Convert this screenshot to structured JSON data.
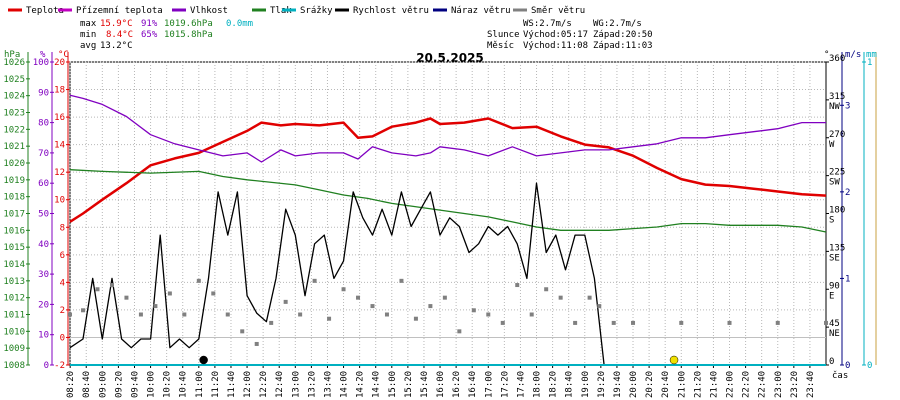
{
  "chart_data": {
    "type": "line",
    "title": "20.5.2025",
    "xlabel": "čas",
    "legend": [
      {
        "label": "Teplota",
        "color": "#e00000"
      },
      {
        "label": "Přízemní teplota",
        "color": "#c000c0"
      },
      {
        "label": "Vlhkost",
        "color": "#8000c0"
      },
      {
        "label": "Tlak",
        "color": "#208020"
      },
      {
        "label": "Srážky",
        "color": "#00b0c0"
      },
      {
        "label": "Rychlost větru",
        "color": "#000000"
      },
      {
        "label": "Náraz větru",
        "color": "#000080"
      },
      {
        "label": "Směr větru",
        "color": "#808080"
      }
    ],
    "stats": {
      "max_label": "max",
      "max_temp": "15.9°C",
      "max_hum": "91%",
      "max_press": "1019.6hPa",
      "rain": "0.0mm",
      "min_label": "min",
      "min_temp": "8.4°C",
      "min_hum": "65%",
      "min_press": "1015.8hPa",
      "avg_label": "avg",
      "avg_temp": "13.2°C"
    },
    "info": {
      "ws": "WS:2.7m/s",
      "wg": "WG:2.7m/s",
      "sun_label": "Slunce",
      "sunrise": "Východ:05:17",
      "sunset": "Západ:20:50",
      "moon_label": "Měsíc",
      "moonrise": "Východ:11:08",
      "moonset": "Západ:11:03"
    },
    "axes": {
      "hpa": {
        "label": "hPa",
        "min": 1008,
        "max": 1026,
        "ticks": [
          "1008",
          "1009",
          "1010",
          "1011",
          "1012",
          "1013",
          "1014",
          "1015",
          "1016",
          "1017",
          "1018",
          "1019",
          "1020",
          "1021",
          "1022",
          "1023",
          "1024",
          "1025",
          "1026"
        ],
        "color": "#208020"
      },
      "hum": {
        "label": "%",
        "min": 0,
        "max": 100,
        "ticks": [
          "0",
          "10",
          "20",
          "30",
          "40",
          "50",
          "60",
          "70",
          "80",
          "90",
          "100"
        ],
        "color": "#8000c0"
      },
      "temp": {
        "label": "°C",
        "min": -2,
        "max": 20,
        "ticks": [
          "-2",
          "0",
          "2",
          "4",
          "6",
          "8",
          "10",
          "12",
          "14",
          "16",
          "18",
          "20"
        ],
        "color": "#e00000"
      },
      "dir": {
        "label": "°",
        "min": 0,
        "max": 360,
        "ticks": [
          "0",
          "45",
          "90",
          "135",
          "180",
          "225",
          "270",
          "315",
          "360"
        ],
        "names": [
          "",
          "NE",
          "E",
          "SE",
          "S",
          "SW",
          "W",
          "NW",
          ""
        ]
      },
      "wind": {
        "label": "m/s",
        "min": 0,
        "max": 3.5,
        "ticks": [
          "0",
          "1",
          "2",
          "3"
        ]
      },
      "rain": {
        "label": "mm",
        "min": 0,
        "max": 1,
        "ticks": [
          "0",
          "1"
        ]
      }
    },
    "x_range": [
      8.33,
      24.0
    ],
    "x_ticks": [
      "08:20",
      "08:40",
      "09:00",
      "09:20",
      "09:40",
      "10:00",
      "10:20",
      "10:40",
      "11:00",
      "11:20",
      "11:40",
      "12:00",
      "12:20",
      "12:40",
      "13:00",
      "13:20",
      "13:40",
      "14:00",
      "14:20",
      "14:40",
      "15:00",
      "15:20",
      "15:40",
      "16:00",
      "16:20",
      "16:40",
      "17:00",
      "17:20",
      "17:40",
      "18:00",
      "18:20",
      "18:40",
      "19:00",
      "19:20",
      "19:40",
      "20:00",
      "20:20",
      "20:40",
      "21:00",
      "21:20",
      "21:40",
      "22:00",
      "22:20",
      "22:40",
      "23:00",
      "23:20",
      "23:40"
    ],
    "series": [
      {
        "name": "Teplota",
        "axis": "temp",
        "color": "#e00000",
        "x": [
          8.33,
          8.6,
          9.0,
          9.5,
          10.0,
          10.5,
          11.0,
          11.5,
          12.0,
          12.3,
          12.7,
          13.0,
          13.5,
          14.0,
          14.3,
          14.6,
          15.0,
          15.5,
          15.8,
          16.0,
          16.5,
          17.0,
          17.5,
          18.0,
          18.5,
          19.0,
          19.5,
          20.0,
          20.5,
          21.0,
          21.5,
          22.0,
          22.5,
          23.0,
          23.5,
          24.0
        ],
        "values": [
          8.4,
          9.0,
          10.0,
          11.2,
          12.5,
          13.0,
          13.4,
          14.2,
          15.0,
          15.6,
          15.4,
          15.5,
          15.4,
          15.6,
          14.5,
          14.6,
          15.3,
          15.6,
          15.9,
          15.5,
          15.6,
          15.9,
          15.2,
          15.3,
          14.6,
          14.0,
          13.8,
          13.2,
          12.3,
          11.5,
          11.1,
          11.0,
          10.8,
          10.6,
          10.4,
          10.3
        ]
      },
      {
        "name": "Vlhkost",
        "axis": "hum",
        "color": "#8000c0",
        "x": [
          8.33,
          8.6,
          9.0,
          9.5,
          10.0,
          10.5,
          11.0,
          11.5,
          12.0,
          12.3,
          12.7,
          13.0,
          13.5,
          14.0,
          14.3,
          14.6,
          15.0,
          15.5,
          15.8,
          16.0,
          16.5,
          17.0,
          17.5,
          18.0,
          18.5,
          19.0,
          19.5,
          20.0,
          20.5,
          21.0,
          21.5,
          22.0,
          22.5,
          23.0,
          23.5,
          24.0
        ],
        "values": [
          89,
          88,
          86,
          82,
          76,
          73,
          71,
          69,
          70,
          67,
          71,
          69,
          70,
          70,
          68,
          72,
          70,
          69,
          70,
          72,
          71,
          69,
          72,
          69,
          70,
          71,
          71,
          72,
          73,
          75,
          75,
          76,
          77,
          78,
          80,
          80
        ]
      },
      {
        "name": "Tlak",
        "axis": "hpa",
        "color": "#208020",
        "x": [
          8.33,
          9.0,
          10.0,
          11.0,
          11.5,
          12.0,
          13.0,
          13.5,
          14.0,
          14.5,
          15.0,
          16.0,
          16.5,
          17.0,
          17.5,
          18.0,
          18.5,
          19.0,
          19.5,
          20.0,
          20.5,
          21.0,
          21.5,
          22.0,
          22.5,
          23.0,
          23.5,
          24.0
        ],
        "values": [
          1019.6,
          1019.5,
          1019.4,
          1019.5,
          1019.2,
          1019.0,
          1018.7,
          1018.4,
          1018.1,
          1017.9,
          1017.6,
          1017.2,
          1017.0,
          1016.8,
          1016.5,
          1016.2,
          1016.0,
          1016.0,
          1016.0,
          1016.1,
          1016.2,
          1016.4,
          1016.4,
          1016.3,
          1016.3,
          1016.3,
          1016.2,
          1015.9
        ]
      },
      {
        "name": "Rychlost větru",
        "axis": "wind",
        "color": "#000000",
        "x": [
          8.33,
          8.6,
          8.8,
          9.0,
          9.2,
          9.4,
          9.6,
          9.8,
          10.0,
          10.2,
          10.4,
          10.6,
          10.8,
          11.0,
          11.2,
          11.4,
          11.6,
          11.8,
          12.0,
          12.2,
          12.4,
          12.6,
          12.8,
          13.0,
          13.2,
          13.4,
          13.6,
          13.8,
          14.0,
          14.2,
          14.4,
          14.6,
          14.8,
          15.0,
          15.2,
          15.4,
          15.6,
          15.8,
          16.0,
          16.2,
          16.4,
          16.6,
          16.8,
          17.0,
          17.2,
          17.4,
          17.6,
          17.8,
          18.0,
          18.2,
          18.4,
          18.6,
          18.8,
          19.0,
          19.2,
          19.4,
          19.6,
          20.0,
          21.0,
          22.0,
          23.0,
          24.0
        ],
        "values": [
          0.2,
          0.3,
          1.0,
          0.3,
          1.0,
          0.3,
          0.2,
          0.3,
          0.3,
          1.5,
          0.2,
          0.3,
          0.2,
          0.3,
          1.0,
          2.0,
          1.5,
          2.0,
          0.8,
          0.6,
          0.5,
          1.0,
          1.8,
          1.5,
          0.8,
          1.4,
          1.5,
          1.0,
          1.2,
          2.0,
          1.7,
          1.5,
          1.8,
          1.5,
          2.0,
          1.6,
          1.8,
          2.0,
          1.5,
          1.7,
          1.6,
          1.3,
          1.4,
          1.6,
          1.5,
          1.6,
          1.4,
          1.0,
          2.1,
          1.3,
          1.5,
          1.1,
          1.5,
          1.5,
          1.0,
          0.0,
          0.0,
          0.0,
          0.0,
          0.0,
          0.0,
          0.0
        ]
      },
      {
        "name": "Směr větru",
        "axis": "dir",
        "color": "#808080",
        "x": [
          8.33,
          8.6,
          8.9,
          9.2,
          9.5,
          9.8,
          10.1,
          10.4,
          10.7,
          11.0,
          11.3,
          11.6,
          11.9,
          12.2,
          12.5,
          12.8,
          13.1,
          13.4,
          13.7,
          14.0,
          14.3,
          14.6,
          14.9,
          15.2,
          15.5,
          15.8,
          16.1,
          16.4,
          16.7,
          17.0,
          17.3,
          17.6,
          17.9,
          18.2,
          18.5,
          18.8,
          19.1,
          19.3,
          19.6,
          20.0,
          21.0,
          22.0,
          23.0,
          24.0
        ],
        "values": [
          60,
          65,
          90,
          95,
          80,
          60,
          70,
          85,
          60,
          100,
          85,
          60,
          40,
          25,
          50,
          75,
          60,
          100,
          55,
          90,
          80,
          70,
          60,
          100,
          55,
          70,
          80,
          40,
          65,
          60,
          50,
          95,
          60,
          90,
          80,
          50,
          80,
          70,
          50,
          50,
          50,
          50,
          50,
          50
        ]
      },
      {
        "name": "Srážky",
        "axis": "rain",
        "color": "#00b0c0",
        "x": [
          8.33,
          24.0
        ],
        "values": [
          0,
          0
        ]
      }
    ],
    "markers": [
      {
        "name": "moon",
        "x": 11.1,
        "color": "#000000"
      },
      {
        "name": "sun",
        "x": 20.85,
        "color": "#f0e000"
      }
    ]
  }
}
